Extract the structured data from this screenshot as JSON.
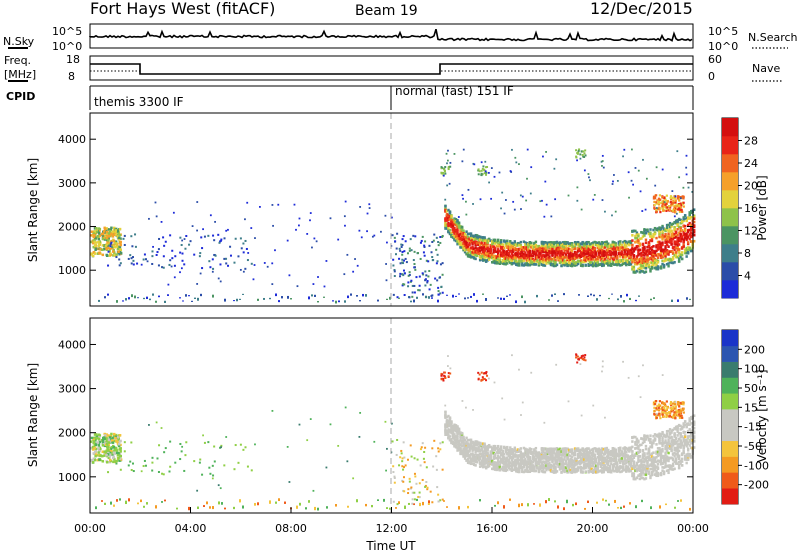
{
  "header": {
    "title": "Fort Hays West (fitACF)",
    "beam": "Beam 19",
    "date": "12/Dec/2015"
  },
  "noise_panel": {
    "left_label": "N.Sky",
    "right_label": "N.Search",
    "left_ticks": [
      "10^5",
      "10^0"
    ],
    "right_ticks": [
      "10^5",
      "10^0"
    ]
  },
  "freq_panel": {
    "left_label_line1": "Freq.",
    "left_label_line2": "[MHz]",
    "right_label": "Nave",
    "left_ticks": [
      "18",
      "8"
    ],
    "right_ticks": [
      "60",
      "0"
    ]
  },
  "cpid_panel": {
    "label": "CPID",
    "modes": [
      {
        "label": "themis 3300 IF",
        "start_h": 0,
        "end_h": 12
      },
      {
        "label": "normal (fast) 151 IF",
        "start_h": 12,
        "end_h": 24
      }
    ]
  },
  "chart_data": [
    {
      "type": "heatmap",
      "panel": "power",
      "ylabel": "Slant Range [km]",
      "xlabel": "",
      "xlim_hours": [
        0,
        24
      ],
      "ylim_km": [
        180,
        4600
      ],
      "yticks": [
        "1000",
        "2000",
        "3000",
        "4000"
      ],
      "colorbar": {
        "label": "Power [dB]",
        "ticks": [
          "4",
          "8",
          "12",
          "16",
          "20",
          "24",
          "28"
        ],
        "range": [
          0,
          30
        ]
      },
      "echo_regions": [
        {
          "desc": "early patch",
          "t": [
            0.0,
            1.0
          ],
          "range_km": [
            1300,
            2000
          ],
          "power_db": 14
        },
        {
          "desc": "late band",
          "t": [
            14.0,
            24.0
          ],
          "range_km": [
            1100,
            2400
          ],
          "power_db": 26
        }
      ]
    },
    {
      "type": "heatmap",
      "panel": "velocity",
      "ylabel": "Slant Range [km]",
      "xlabel": "Time UT",
      "xlim_hours": [
        0,
        24
      ],
      "ylim_km": [
        180,
        4600
      ],
      "yticks": [
        "1000",
        "2000",
        "3000",
        "4000"
      ],
      "xticks": [
        "00:00",
        "04:00",
        "08:00",
        "12:00",
        "16:00",
        "20:00",
        "00:00"
      ],
      "colorbar": {
        "label": "Velocity [m s⁻¹]",
        "ticks": [
          "200",
          "100",
          "50",
          "15",
          "-15",
          "-50",
          "-100",
          "-200"
        ]
      },
      "echo_regions": [
        {
          "desc": "early patch",
          "t": [
            0.0,
            1.0
          ],
          "range_km": [
            1300,
            2000
          ],
          "velocity_ms": 30
        },
        {
          "desc": "late band",
          "t": [
            14.0,
            24.0
          ],
          "range_km": [
            1100,
            2400
          ],
          "velocity_ms": 0
        }
      ]
    }
  ],
  "colors": {
    "power_scale": [
      "#1d2bd8",
      "#2b4da8",
      "#3e7e8a",
      "#4b9462",
      "#8ec24a",
      "#e3d23c",
      "#f5a02a",
      "#f06420",
      "#e82418",
      "#d40f0f"
    ],
    "velocity_scale": [
      "#e21c14",
      "#ef5a1a",
      "#f49a22",
      "#f4c43c",
      "#c8c8c2",
      "#c8c8c2",
      "#8fcf45",
      "#4fb25a",
      "#3a7c6e",
      "#2c55b0",
      "#1a34c8"
    ]
  }
}
